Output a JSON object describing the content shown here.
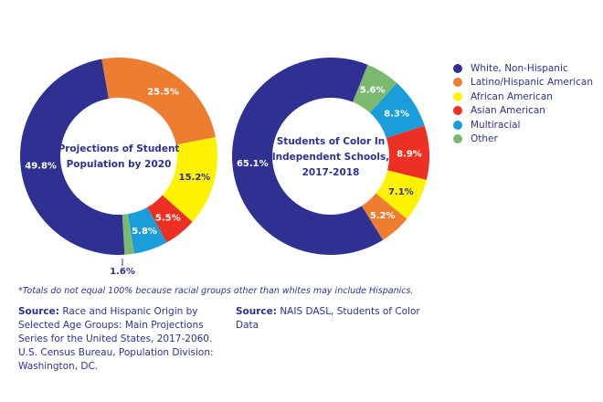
{
  "chart_data": [
    {
      "type": "pie",
      "variant": "donut",
      "title": "Projections of Student Population by 2020",
      "title_lines": [
        "Projections of Student",
        "Population by 2020"
      ],
      "start_category": "Latino/Hispanic American",
      "slices": [
        {
          "category": "Latino/Hispanic American",
          "value": 25.5,
          "label": "25.5%"
        },
        {
          "category": "African American",
          "value": 15.2,
          "label": "15.2%"
        },
        {
          "category": "Asian American",
          "value": 5.5,
          "label": "5.5%"
        },
        {
          "category": "Multiracial",
          "value": 5.8,
          "label": "5.8%"
        },
        {
          "category": "Other",
          "value": 1.6,
          "label": "1.6%"
        },
        {
          "category": "White, Non-Hispanic",
          "value": 49.8,
          "label": "49.8%"
        }
      ]
    },
    {
      "type": "pie",
      "variant": "donut",
      "title": "Students of Color In Independent Schools, 2017-2018",
      "title_lines": [
        "Students of Color In",
        "Independent Schools,",
        "2017-2018"
      ],
      "start_category": "Other",
      "slices": [
        {
          "category": "Other",
          "value": 5.6,
          "label": "5.6%"
        },
        {
          "category": "Multiracial",
          "value": 8.3,
          "label": "8.3%"
        },
        {
          "category": "Asian American",
          "value": 8.9,
          "label": "8.9%"
        },
        {
          "category": "African American",
          "value": 7.1,
          "label": "7.1%"
        },
        {
          "category": "Latino/Hispanic American",
          "value": 5.2,
          "label": "5.2%"
        },
        {
          "category": "White, Non-Hispanic",
          "value": 65.1,
          "label": "65.1%"
        }
      ]
    }
  ],
  "legend": {
    "placement": "top-right",
    "items": [
      {
        "label": "White, Non-Hispanic",
        "color": "#2e3192"
      },
      {
        "label": "Latino/Hispanic American",
        "color": "#ed7d31"
      },
      {
        "label": "African American",
        "color": "#fff200"
      },
      {
        "label": "Asian American",
        "color": "#ed3024"
      },
      {
        "label": "Multiracial",
        "color": "#1b9dd9"
      },
      {
        "label": "Other",
        "color": "#7bb870"
      }
    ]
  },
  "colors": {
    "White, Non-Hispanic": "#2e3192",
    "Latino/Hispanic American": "#ed7d31",
    "African American": "#fff200",
    "Asian American": "#ed3024",
    "Multiracial": "#1b9dd9",
    "Other": "#7bb870",
    "text": "#2e3192"
  },
  "footnote": "*Totals do not equal 100% because racial groups other than whites may include Hispanics.",
  "sources": [
    {
      "label": "Source:",
      "text": " Race and Hispanic Origin by Selected Age Groups: Main Projections Series for the United States, 2017-2060. U.S. Census Bureau, Population Division: Washington, DC."
    },
    {
      "label": "Source:",
      "text": " NAIS DASL, Students of Color Data"
    }
  ]
}
